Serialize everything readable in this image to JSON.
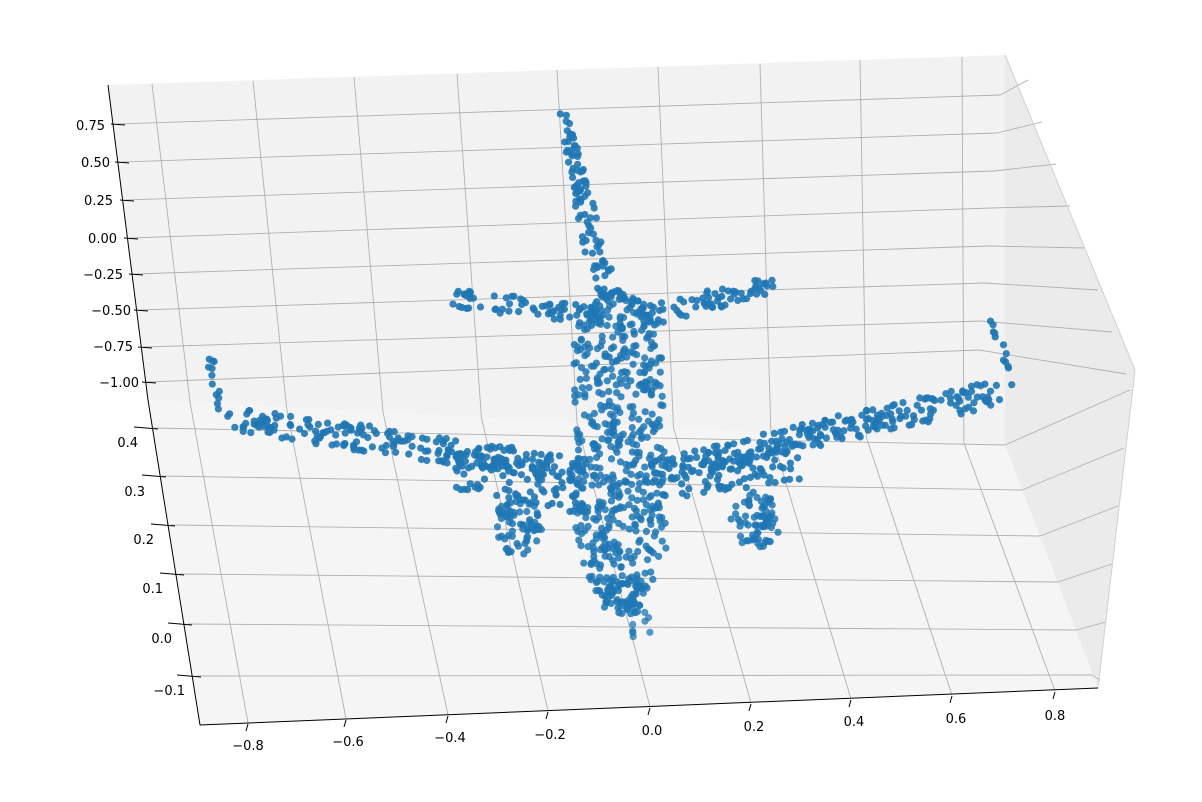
{
  "chart_data": {
    "type": "scatter",
    "projection": "3d",
    "title": "",
    "xlabel": "",
    "ylabel": "",
    "zlabel": "",
    "grid": true,
    "legend": "none",
    "colors": {
      "points": "#1f77b4"
    },
    "x_ticks": [
      "−0.8",
      "−0.6",
      "−0.4",
      "−0.2",
      "0.0",
      "0.2",
      "0.4",
      "0.6",
      "0.8"
    ],
    "y_ticks": [
      "0.4",
      "0.3",
      "0.2",
      "0.1",
      "0.0",
      "−0.1"
    ],
    "z_ticks": [
      "0.75",
      "0.50",
      "0.25",
      "0.00",
      "−0.25",
      "−0.50",
      "−0.75",
      "−1.00"
    ],
    "xlim": [
      -0.9,
      0.9
    ],
    "ylim": [
      -0.15,
      0.45
    ],
    "zlim": [
      -1.1,
      0.85
    ],
    "point_cloud": {
      "subject": "airplane",
      "approx_point_count": 2048,
      "fuselage": {
        "x": [
          -0.12,
          0.08
        ],
        "z": [
          -1.0,
          0.55
        ]
      },
      "main_wing_span_x": [
        -0.88,
        0.7
      ],
      "tailplane_span_x": [
        -0.4,
        0.25
      ],
      "fin_tip_z": 0.85,
      "engines_x": [
        -0.3,
        0.28
      ],
      "wingtip_fin_x": [
        -0.88,
        0.72
      ]
    }
  }
}
